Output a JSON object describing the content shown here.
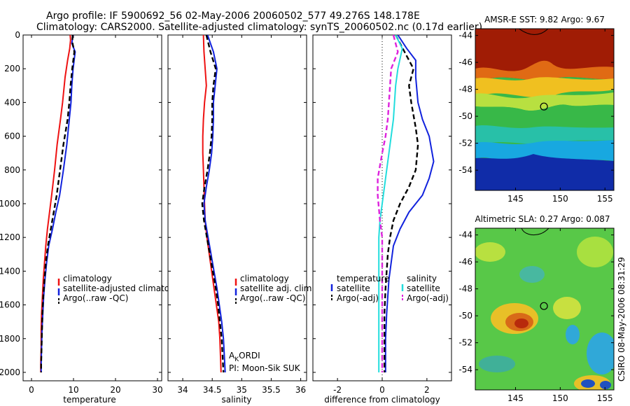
{
  "header": {
    "line1": "Argo profile: IF 5900692_56 02-May-2006 20060502_577 49.276S 148.178E",
    "line2": "Climatology: CARS2000. Satellite-adjusted climatology: synTS_20060502.nc (0.17d earlier)"
  },
  "credit": {
    "line1": "A",
    "line1_sub": "K",
    "line1_rest": "ORDI",
    "line2": "PI: Moon-Sik SUK"
  },
  "stamp": "CSIRO 08-May-2006 08:31:29",
  "colors": {
    "climatology": "#ee1111",
    "satellite": "#1122dd",
    "argo": "#000000",
    "satellite_diff": "#22dddd",
    "argo_diff_salinity": "#dd22dd"
  },
  "chart_data": [
    {
      "type": "line",
      "xlabel": "temperature",
      "ylabel": "",
      "xlim": [
        -2,
        31
      ],
      "ylim": [
        2050,
        0
      ],
      "xticks": [
        "0",
        "10",
        "20",
        "30"
      ],
      "yticks": [
        "0",
        "200",
        "400",
        "600",
        "800",
        "1000",
        "1200",
        "1400",
        "1600",
        "1800",
        "2000"
      ],
      "y_reversed": true,
      "legend": [
        "climatology",
        "satellite-adjusted climatology",
        "Argo(..raw -QC)"
      ],
      "legend_placement": "lower-right",
      "series": [
        {
          "name": "climatology",
          "color_key": "climatology",
          "style": "solid",
          "x": [
            9.2,
            9.3,
            9.1,
            8.6,
            8.0,
            7.4,
            6.9,
            6.1,
            5.5,
            4.8,
            4.3,
            3.8,
            3.4,
            3.1,
            2.8,
            2.6,
            2.4,
            2.3,
            2.3,
            2.2,
            2.2
          ],
          "y": [
            0,
            30,
            80,
            150,
            250,
            400,
            500,
            650,
            800,
            950,
            1050,
            1150,
            1250,
            1350,
            1450,
            1550,
            1650,
            1750,
            1850,
            1950,
            2000
          ]
        },
        {
          "name": "satellite-adjusted climatology",
          "color_key": "satellite",
          "style": "solid",
          "x": [
            9.9,
            9.6,
            10.4,
            9.9,
            9.6,
            9.4,
            9.0,
            8.4,
            7.6,
            6.7,
            5.8,
            5.0,
            4.1,
            3.6,
            3.2,
            2.9,
            2.7,
            2.5,
            2.4,
            2.3,
            2.3
          ],
          "y": [
            0,
            50,
            100,
            200,
            300,
            400,
            500,
            650,
            800,
            950,
            1050,
            1150,
            1250,
            1350,
            1450,
            1550,
            1650,
            1750,
            1850,
            1950,
            2000
          ]
        },
        {
          "name": "Argo(..raw -QC)",
          "color_key": "argo",
          "style": "dashed",
          "x": [
            9.8,
            9.7,
            10.2,
            9.7,
            9.3,
            9.0,
            8.6,
            7.6,
            6.8,
            6.0,
            5.3,
            4.6,
            3.9,
            3.4,
            3.1,
            2.8,
            2.6,
            2.5,
            2.4,
            2.3,
            2.3
          ],
          "y": [
            0,
            40,
            100,
            200,
            300,
            400,
            500,
            650,
            800,
            950,
            1050,
            1150,
            1250,
            1350,
            1450,
            1550,
            1650,
            1750,
            1850,
            1950,
            2000
          ]
        }
      ]
    },
    {
      "type": "line",
      "xlabel": "salinity",
      "ylabel": "",
      "xlim": [
        33.75,
        36.1
      ],
      "ylim": [
        2050,
        0
      ],
      "xticks": [
        "34",
        "34.5",
        "35",
        "35.5",
        "36"
      ],
      "y_reversed": true,
      "legend": [
        "climatology",
        "satellite adj. clim.",
        "Argo(..raw -QC)"
      ],
      "legend_placement": "lower-right",
      "series": [
        {
          "name": "climatology",
          "color_key": "climatology",
          "style": "solid",
          "x": [
            34.35,
            34.36,
            34.38,
            34.4,
            34.37,
            34.35,
            34.34,
            34.34,
            34.35,
            34.36,
            34.37,
            34.38,
            34.41,
            34.45,
            34.49,
            34.53,
            34.57,
            34.61,
            34.63,
            34.65
          ],
          "y": [
            0,
            100,
            200,
            300,
            400,
            500,
            600,
            700,
            800,
            900,
            1000,
            1100,
            1200,
            1300,
            1400,
            1500,
            1600,
            1700,
            1800,
            2000
          ]
        },
        {
          "name": "satellite adj. clim.",
          "color_key": "satellite",
          "style": "solid",
          "x": [
            34.42,
            34.52,
            34.58,
            34.55,
            34.52,
            34.52,
            34.51,
            34.49,
            34.45,
            34.4,
            34.36,
            34.38,
            34.43,
            34.48,
            34.53,
            34.58,
            34.62,
            34.66,
            34.69,
            34.72
          ],
          "y": [
            0,
            100,
            200,
            300,
            400,
            500,
            600,
            700,
            800,
            900,
            1000,
            1100,
            1200,
            1300,
            1400,
            1500,
            1600,
            1700,
            1800,
            2000
          ]
        },
        {
          "name": "Argo(..raw -QC)",
          "color_key": "argo",
          "style": "dashed",
          "x": [
            34.4,
            34.47,
            34.56,
            34.52,
            34.5,
            34.5,
            34.49,
            34.46,
            34.42,
            34.37,
            34.33,
            34.36,
            34.41,
            34.46,
            34.51,
            34.56,
            34.6,
            34.63,
            34.66,
            34.69
          ],
          "y": [
            0,
            100,
            200,
            300,
            400,
            500,
            600,
            700,
            800,
            900,
            1000,
            1100,
            1200,
            1300,
            1400,
            1500,
            1600,
            1700,
            1800,
            2000
          ]
        }
      ]
    },
    {
      "type": "line",
      "xlabel": "difference from climatology",
      "ylabel": "",
      "xlim": [
        -3.1,
        3.1
      ],
      "ylim": [
        2050,
        0
      ],
      "xticks": [
        "-2",
        "0",
        "2"
      ],
      "y_reversed": true,
      "legend_groups": [
        {
          "title": "temperature",
          "items": [
            "satellite",
            "Argo(-adj)"
          ]
        },
        {
          "title": "salinity",
          "items": [
            "satellite",
            "Argo(-adj)"
          ]
        }
      ],
      "legend_placement": "lower-right",
      "series": [
        {
          "name": "satellite",
          "group": "temperature",
          "color_key": "satellite",
          "style": "solid",
          "x": [
            0.7,
            1.1,
            1.5,
            1.5,
            1.6,
            1.8,
            2.1,
            2.3,
            2.1,
            1.8,
            1.2,
            0.8,
            0.5,
            0.4,
            0.3,
            0.25,
            0.2,
            0.15,
            0.15
          ],
          "y": [
            0,
            80,
            150,
            250,
            400,
            500,
            600,
            750,
            850,
            950,
            1050,
            1150,
            1250,
            1350,
            1450,
            1550,
            1650,
            1800,
            2000
          ]
        },
        {
          "name": "Argo(-adj)",
          "group": "temperature",
          "color_key": "argo",
          "style": "dashed",
          "x": [
            0.6,
            1.0,
            1.4,
            1.2,
            1.3,
            1.5,
            1.6,
            1.5,
            1.2,
            0.8,
            0.5,
            0.35,
            0.25,
            0.2,
            0.15,
            0.1,
            0.1,
            0.1
          ],
          "y": [
            0,
            100,
            200,
            300,
            400,
            550,
            650,
            800,
            900,
            1000,
            1100,
            1200,
            1300,
            1400,
            1500,
            1650,
            1800,
            2000
          ]
        },
        {
          "name": "satellite",
          "group": "salinity",
          "color_key": "satellite_diff",
          "style": "solid",
          "x": [
            0.6,
            0.9,
            0.7,
            0.6,
            0.55,
            0.5,
            0.4,
            0.3,
            0.2,
            0.1,
            0.0,
            -0.1,
            -0.15,
            -0.15,
            -0.15,
            -0.15,
            -0.15,
            -0.15,
            -0.15
          ],
          "y": [
            0,
            80,
            200,
            300,
            400,
            500,
            600,
            700,
            800,
            900,
            1000,
            1100,
            1200,
            1300,
            1400,
            1500,
            1600,
            1800,
            2000
          ]
        },
        {
          "name": "Argo(-adj)",
          "group": "salinity",
          "color_key": "argo_diff_salinity",
          "style": "dashed",
          "x": [
            0.5,
            0.7,
            0.4,
            0.35,
            0.3,
            0.25,
            0.15,
            0.0,
            -0.2,
            -0.2,
            -0.1,
            0.0,
            0.0,
            0.0,
            0.0,
            0.0,
            0.0
          ],
          "y": [
            0,
            100,
            200,
            300,
            400,
            500,
            600,
            700,
            850,
            950,
            1100,
            1200,
            1300,
            1400,
            1600,
            1800,
            2000
          ]
        }
      ]
    },
    {
      "type": "heatmap",
      "title": "AMSR-E SST: 9.82 Argo: 9.67",
      "xlim": [
        140.5,
        156
      ],
      "ylim": [
        -55.5,
        -43.5
      ],
      "xticks": [
        "145",
        "150",
        "155"
      ],
      "yticks": [
        "-44",
        "-46",
        "-48",
        "-50",
        "-52",
        "-54"
      ],
      "marker": {
        "x": 148.178,
        "y": -49.276
      },
      "bands": [
        {
          "from": -43.5,
          "to": -46.5,
          "color": "#a01c05"
        },
        {
          "from": -46.5,
          "to": -48.0,
          "color": "#f0b020"
        },
        {
          "from": -48.0,
          "to": -50.5,
          "color": "#30b848"
        },
        {
          "from": -50.5,
          "to": -52.5,
          "color": "#10b8e0"
        },
        {
          "from": -52.5,
          "to": -55.5,
          "color": "#102ca8"
        }
      ]
    },
    {
      "type": "heatmap",
      "title": "Altimetric SLA: 0.27 Argo: 0.087",
      "xlim": [
        140.5,
        156
      ],
      "ylim": [
        -55.5,
        -43.5
      ],
      "xticks": [
        "145",
        "150",
        "155"
      ],
      "yticks": [
        "-44",
        "-46",
        "-48",
        "-50",
        "-52",
        "-54"
      ],
      "marker": {
        "x": 148.178,
        "y": -49.276
      },
      "background": "#58c848"
    }
  ]
}
